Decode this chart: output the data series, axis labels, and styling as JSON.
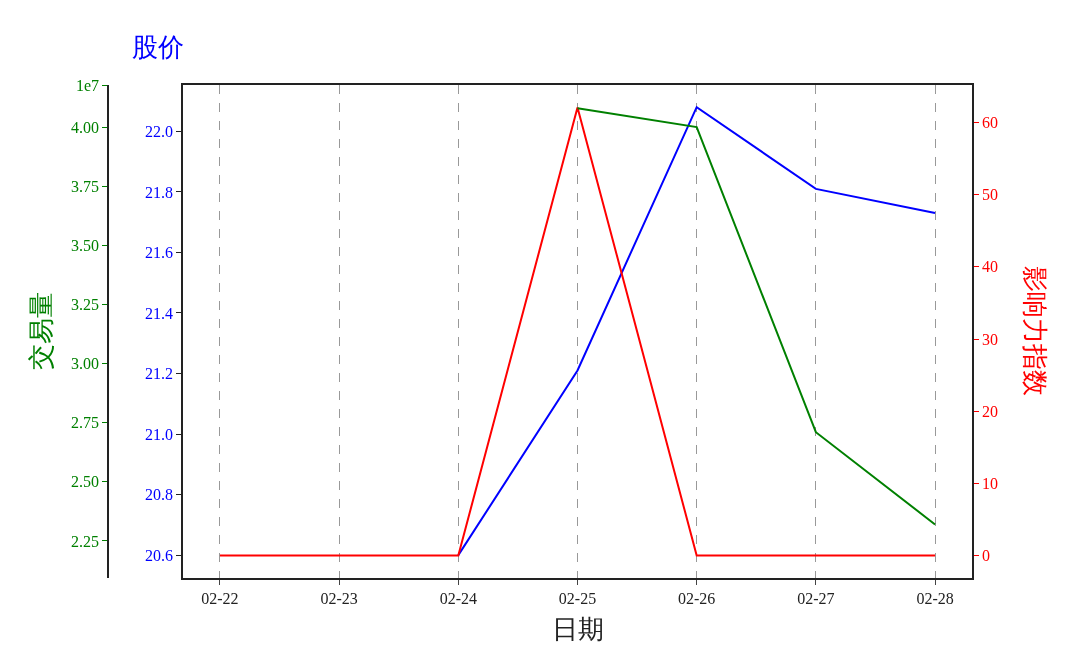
{
  "chart_data": {
    "type": "line",
    "xlabel": "日期",
    "ylabel": "股价",
    "y2label": "影响力指数",
    "y3label": "交易量",
    "categories": [
      "02-22",
      "02-23",
      "02-24",
      "02-25",
      "02-26",
      "02-27",
      "02-28"
    ],
    "series": [
      {
        "color": "#0000ff",
        "values": [
          null,
          null,
          20.6,
          21.21,
          22.08,
          21.81,
          21.73
        ]
      },
      {
        "color": "#008000",
        "axis": "y3",
        "values": [
          null,
          null,
          null,
          4.08,
          4.0,
          2.71,
          2.32
        ]
      },
      {
        "color": "#ff0000",
        "axis": "y2",
        "values": [
          0,
          0,
          0,
          62.1,
          0,
          0,
          0
        ]
      }
    ],
    "ylim": [
      20.525,
      22.153
    ],
    "yticks": [
      {
        "value": 20.6,
        "label": "20.6"
      },
      {
        "value": 20.8,
        "label": "20.8"
      },
      {
        "value": 21.0,
        "label": "21.0"
      },
      {
        "value": 21.2,
        "label": "21.2"
      },
      {
        "value": 21.4,
        "label": "21.4"
      },
      {
        "value": 21.6,
        "label": "21.6"
      },
      {
        "value": 21.8,
        "label": "21.8"
      },
      {
        "value": 22.0,
        "label": "22.0"
      }
    ],
    "y2lim": [
      -3.1,
      65.2
    ],
    "y2ticks": [
      0,
      10,
      20,
      30,
      40,
      50,
      60
    ],
    "y3lim": [
      2.094,
      4.178
    ],
    "y3ticks": [
      {
        "value": 2.25,
        "label": "2.25"
      },
      {
        "value": 2.5,
        "label": "2.50"
      },
      {
        "value": 2.75,
        "label": "2.75"
      },
      {
        "value": 3.0,
        "label": "3.00"
      },
      {
        "value": 3.25,
        "label": "3.25"
      },
      {
        "value": 3.5,
        "label": "3.50"
      },
      {
        "value": 3.75,
        "label": "3.75"
      },
      {
        "value": 4.0,
        "label": "4.00"
      },
      {
        "value": null,
        "label": "1e7"
      }
    ],
    "grid": "x",
    "line_style": "solid",
    "marker": "none"
  }
}
